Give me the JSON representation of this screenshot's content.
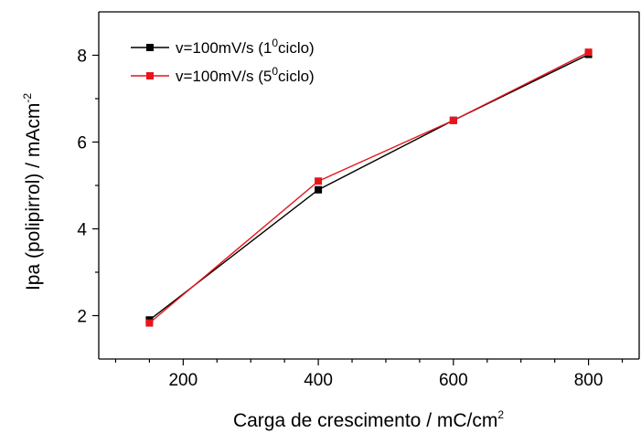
{
  "chart_data": {
    "type": "line",
    "title": "",
    "xlabel": "Carga de crescimento / mC/cm",
    "xlabel_sup": "2",
    "ylabel": "Ipa (polipirrol) / mAcm",
    "ylabel_sup": "-2",
    "xlim": [
      75,
      875
    ],
    "ylim": [
      1.0,
      9.0
    ],
    "xticks": [
      200,
      400,
      600,
      800
    ],
    "yticks": [
      2,
      4,
      6,
      8
    ],
    "x": [
      150,
      400,
      600,
      800
    ],
    "series": [
      {
        "name_pre": "v=100mV/s (1",
        "name_sup": "0",
        "name_post": "ciclo)",
        "color": "#000000",
        "values": [
          1.9,
          4.9,
          6.5,
          8.02
        ]
      },
      {
        "name_pre": "v=100mV/s (5",
        "name_sup": "0",
        "name_post": "ciclo)",
        "color": "#e8141c",
        "values": [
          1.83,
          5.1,
          6.5,
          8.07
        ]
      }
    ],
    "legend_position": "top-left",
    "grid": false
  }
}
